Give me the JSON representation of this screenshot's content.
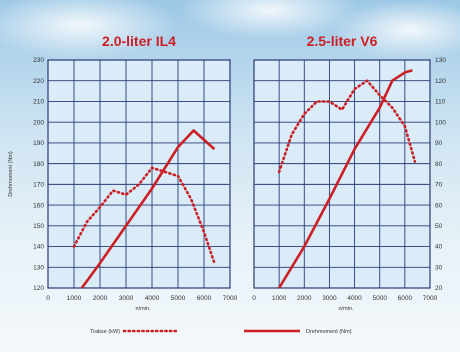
{
  "colors": {
    "curve": "#cc1f25",
    "grid": "#2b3a78",
    "panel": "#d9ecf8"
  },
  "legend": {
    "power_label": "Trabse (kW)",
    "torque_label": "Drehmoment (Nm)"
  },
  "chart_data": [
    {
      "type": "line",
      "title": "2.0-liter IL4",
      "xlabel": "n/min.",
      "ylabel": "Drehmoment (Nm)",
      "xlim": [
        0,
        7000
      ],
      "ylim": [
        120,
        230
      ],
      "x_ticks": [
        "0",
        "1000",
        "2000",
        "3000",
        "4000",
        "5000",
        "6000",
        "7000"
      ],
      "y_ticks": [
        "120",
        "130",
        "140",
        "150",
        "160",
        "170",
        "180",
        "190",
        "200",
        "210",
        "220",
        "230"
      ],
      "series": [
        {
          "name": "Drehmoment (Nm)",
          "style": "solid",
          "x": [
            1300,
            2000,
            3000,
            4000,
            5000,
            5600,
            6400
          ],
          "y": [
            120,
            132,
            150,
            168,
            188,
            196,
            187
          ]
        },
        {
          "name": "Trabse (kW)",
          "style": "dotted",
          "x": [
            1000,
            1500,
            2000,
            2500,
            3000,
            3500,
            4000,
            4500,
            5000,
            5500,
            6000,
            6400
          ],
          "y": [
            140,
            152,
            159,
            167,
            165,
            170,
            178,
            176,
            174,
            163,
            147,
            132
          ]
        }
      ]
    },
    {
      "type": "line",
      "title": "2.5-liter V6",
      "xlabel": "n/min.",
      "xlim": [
        0,
        7000
      ],
      "ylim": [
        20,
        130
      ],
      "x_ticks": [
        "0",
        "1000",
        "2000",
        "3000",
        "4000",
        "5000",
        "6000",
        "7000"
      ],
      "y_ticks": [
        "20",
        "30",
        "40",
        "50",
        "60",
        "70",
        "80",
        "90",
        "100",
        "110",
        "120",
        "130"
      ],
      "series": [
        {
          "name": "Drehmoment (Nm)",
          "style": "solid",
          "x": [
            1000,
            2000,
            3000,
            4000,
            5000,
            5500,
            6000,
            6300
          ],
          "y": [
            20,
            40,
            63,
            87,
            107,
            120,
            124,
            125
          ]
        },
        {
          "name": "Trabse (kW)",
          "style": "dotted",
          "x": [
            1000,
            1500,
            2000,
            2500,
            3000,
            3500,
            4000,
            4500,
            5000,
            5500,
            6000,
            6400
          ],
          "y": [
            76,
            94,
            104,
            110,
            110,
            106,
            116,
            120,
            113,
            107,
            98,
            81
          ]
        }
      ]
    }
  ]
}
